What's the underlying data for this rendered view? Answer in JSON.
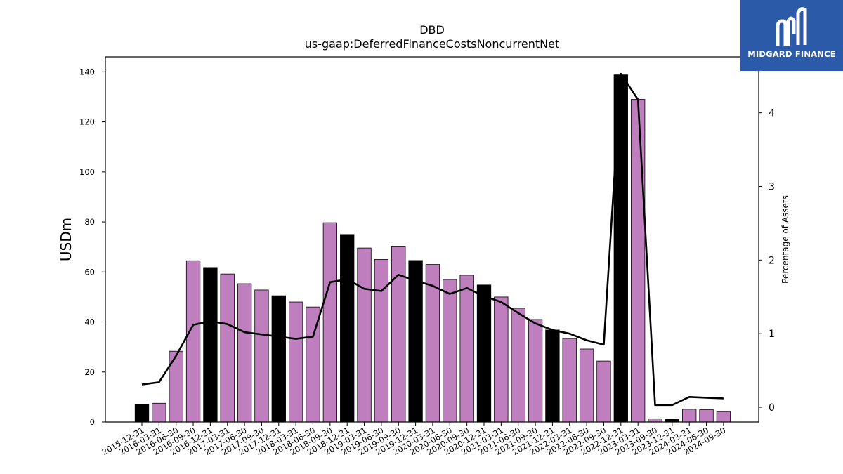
{
  "logo": {
    "text": "MIDGARD FINANCE",
    "background": "#2b5aa8",
    "icon": "midgard-logo-icon"
  },
  "chart_data": {
    "type": "bar",
    "title": "DBD",
    "subtitle": "us-gaap:DeferredFinanceCostsNoncurrentNet",
    "ylabel": "USDm",
    "y2label": "Percentage of Assets",
    "ylim": [
      0,
      146
    ],
    "y2lim": [
      -0.2,
      4.76
    ],
    "yticks": [
      0,
      20,
      40,
      60,
      80,
      100,
      120,
      140
    ],
    "y2ticks": [
      0,
      1,
      2,
      3,
      4
    ],
    "grid": false,
    "colors": {
      "bar_default": "#bf7fbf",
      "bar_q4": "#000000",
      "line": "#000000"
    },
    "categories": [
      "2015-12-31",
      "2016-03-31",
      "2016-06-30",
      "2016-09-30",
      "2016-12-31",
      "2017-03-31",
      "2017-06-30",
      "2017-09-30",
      "2017-12-31",
      "2018-03-31",
      "2018-06-30",
      "2018-09-30",
      "2018-12-31",
      "2019-03-31",
      "2019-06-30",
      "2019-09-30",
      "2019-12-31",
      "2020-03-31",
      "2020-06-30",
      "2020-09-30",
      "2020-12-31",
      "2021-03-31",
      "2021-06-30",
      "2021-09-30",
      "2021-12-31",
      "2022-03-31",
      "2022-06-30",
      "2022-09-30",
      "2022-12-31",
      "2023-03-31",
      "2023-09-30",
      "2023-12-31",
      "2024-03-31",
      "2024-06-30",
      "2024-09-30"
    ],
    "series": [
      {
        "type": "bar",
        "values": [
          7.0,
          7.5,
          28.3,
          64.5,
          61.8,
          59.2,
          55.3,
          52.8,
          50.5,
          48.0,
          46.0,
          79.7,
          75.0,
          69.6,
          65.0,
          70.1,
          64.6,
          63.0,
          57.0,
          58.7,
          54.8,
          50.0,
          45.5,
          41.0,
          36.8,
          33.4,
          29.2,
          24.4,
          138.8,
          129.0,
          1.3,
          1.1,
          5.1,
          4.9,
          4.3
        ],
        "highlight": [
          true,
          false,
          false,
          false,
          true,
          false,
          false,
          false,
          true,
          false,
          false,
          false,
          true,
          false,
          false,
          false,
          true,
          false,
          false,
          false,
          true,
          false,
          false,
          false,
          true,
          false,
          false,
          false,
          true,
          false,
          false,
          true,
          false,
          false,
          false
        ]
      },
      {
        "type": "line",
        "axis": "right",
        "values": [
          0.31,
          0.34,
          0.7,
          1.12,
          1.17,
          1.13,
          1.02,
          0.99,
          0.96,
          0.93,
          0.96,
          1.7,
          1.74,
          1.61,
          1.58,
          1.8,
          1.72,
          1.65,
          1.54,
          1.62,
          1.51,
          1.43,
          1.28,
          1.14,
          1.05,
          1.0,
          0.91,
          0.85,
          4.53,
          4.18,
          0.03,
          0.03,
          0.14,
          0.13,
          0.12
        ]
      }
    ]
  }
}
